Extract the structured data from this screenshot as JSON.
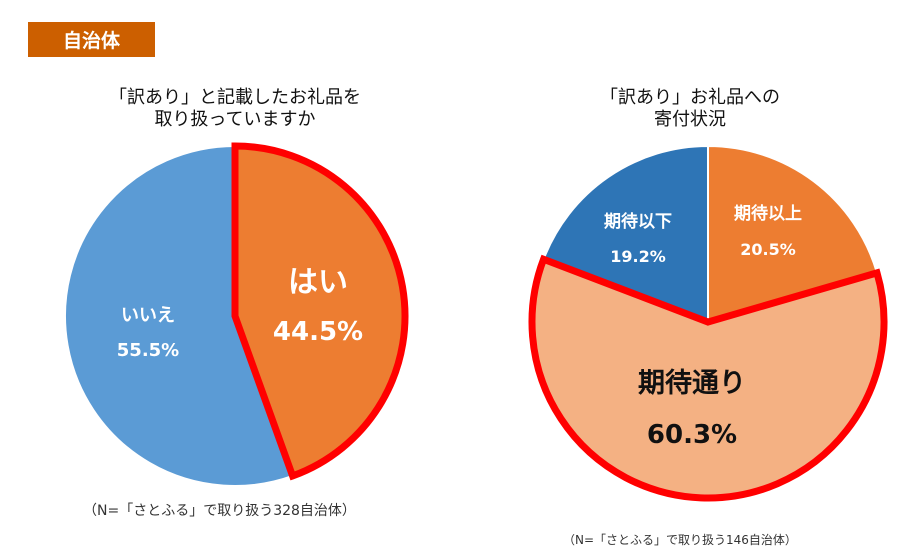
{
  "header": {
    "badge": "自治体"
  },
  "colors": {
    "badge": "#cc5f00",
    "orange": "#ed7d31",
    "blue_light": "#5b9bd5",
    "blue_dark": "#2e75b6",
    "peach": "#f4b183",
    "highlight_border": "#ff0000"
  },
  "chart_data": [
    {
      "type": "pie",
      "title": [
        "「訳あり」と記載したお礼品を",
        "取り扱っていますか"
      ],
      "slices": [
        {
          "label": "はい",
          "value": 44.5,
          "value_label": "44.5%",
          "color": "#ed7d31",
          "highlighted": true
        },
        {
          "label": "いいえ",
          "value": 55.5,
          "value_label": "55.5%",
          "color": "#5b9bd5",
          "highlighted": false
        }
      ],
      "note": "（N=「さとふる」で取り扱う328自治体）"
    },
    {
      "type": "pie",
      "title": [
        "「訳あり」お礼品への",
        "寄付状況"
      ],
      "slices": [
        {
          "label": "期待以上",
          "value": 20.5,
          "value_label": "20.5%",
          "color": "#ed7d31",
          "highlighted": false
        },
        {
          "label": "期待通り",
          "value": 60.3,
          "value_label": "60.3%",
          "color": "#f4b183",
          "highlighted": true
        },
        {
          "label": "期待以下",
          "value": 19.2,
          "value_label": "19.2%",
          "color": "#2e75b6",
          "highlighted": false
        }
      ],
      "note": "（N=「さとふる」で取り扱う146自治体）"
    }
  ]
}
